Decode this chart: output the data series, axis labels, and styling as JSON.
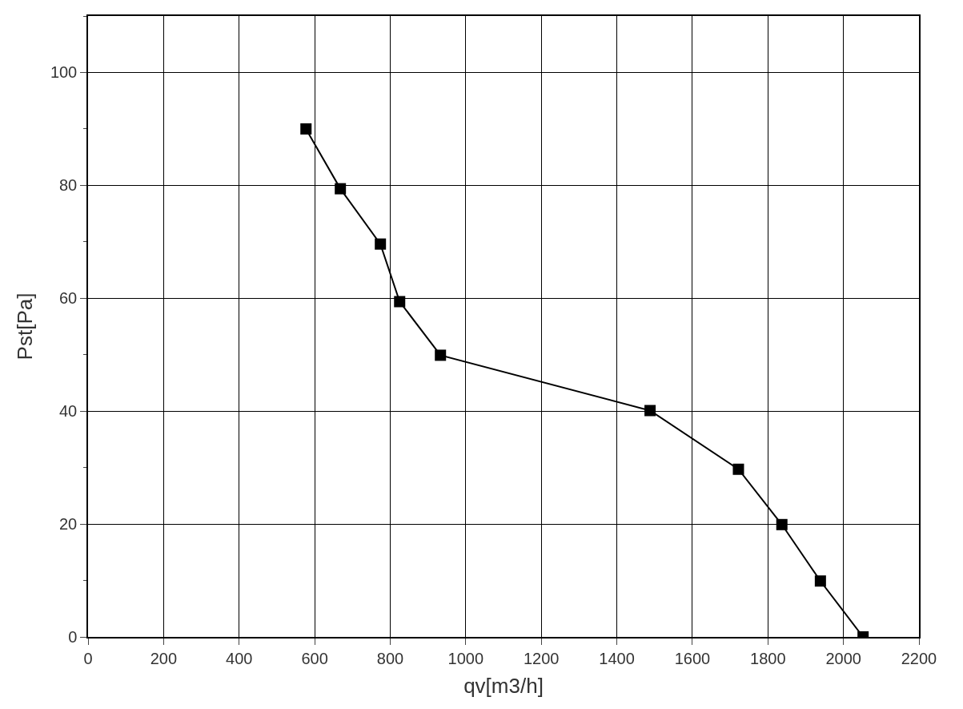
{
  "chart_data": {
    "type": "line",
    "xlabel": "qv[m3/h]",
    "ylabel": "Pst[Pa]",
    "xlim": [
      0,
      2200
    ],
    "xticks": [
      0,
      200,
      400,
      600,
      800,
      1000,
      1200,
      1400,
      1600,
      1800,
      2000,
      2200
    ],
    "ylim": [
      0,
      110
    ],
    "yticks": [
      0,
      20,
      40,
      60,
      80,
      100
    ],
    "grid": true,
    "marker": "square",
    "line_style": "solid",
    "series": [
      {
        "color": "#000000",
        "x": [
          577,
          668,
          774,
          825,
          933,
          1488,
          1722,
          1837,
          1939,
          2052
        ],
        "values": [
          90,
          79.4,
          69.6,
          59.4,
          49.9,
          40.1,
          29.7,
          19.9,
          9.9,
          0
        ]
      }
    ]
  }
}
